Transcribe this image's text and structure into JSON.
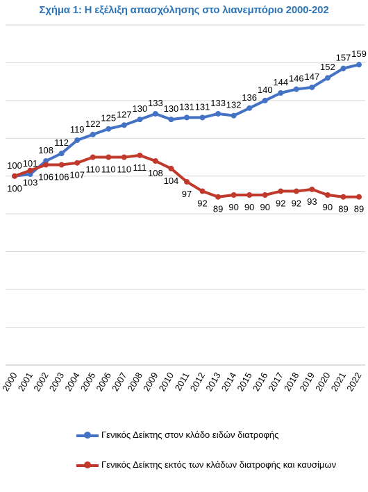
{
  "chart_data": {
    "type": "line",
    "title": "Σχήμα 1: Η εξέλιξη απασχόλησης στο λιανεμπόριο 2000-202",
    "xlabel": "",
    "ylabel": "",
    "categories": [
      "2000",
      "2001",
      "2002",
      "2003",
      "2004",
      "2005",
      "2006",
      "2007",
      "2008",
      "2009",
      "2010",
      "2011",
      "2012",
      "2013",
      "2014",
      "2015",
      "2016",
      "2017",
      "2018",
      "2019",
      "2020",
      "2021",
      "2022"
    ],
    "ylim": [
      0,
      180
    ],
    "grid": true,
    "legend_position": "bottom",
    "series": [
      {
        "name": "Γενικός Δείκτης στον κλάδο ειδών διατροφής",
        "color": "#4472c4",
        "values": [
          100,
          101,
          108,
          112,
          119,
          122,
          125,
          127,
          130,
          133,
          130,
          131,
          131,
          133,
          132,
          136,
          140,
          144,
          146,
          147,
          152,
          157,
          159
        ]
      },
      {
        "name": "Γενικός Δείκτης εκτός των κλάδων διατροφής και καυσίμων",
        "color": "#c0392b",
        "values": [
          100,
          103,
          106,
          106,
          107,
          110,
          110,
          110,
          111,
          108,
          104,
          97,
          92,
          89,
          90,
          90,
          90,
          92,
          92,
          93,
          90,
          89,
          89
        ]
      }
    ]
  }
}
